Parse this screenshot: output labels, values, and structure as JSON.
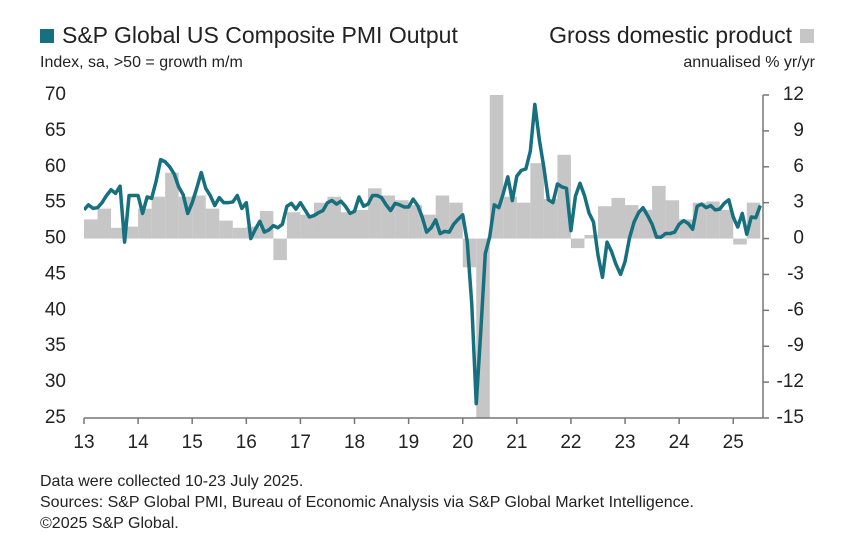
{
  "chart_data": {
    "type": "combo",
    "y_label": "Index, sa, >50 = growth m/m",
    "y2_label": "annualised % yr/yr",
    "notes": [
      "Data were collected 10-23 July 2025.",
      "Sources: S&P Global PMI, Bureau of Economic Analysis via S&P Global Market Intelligence.",
      "©2025 S&P Global."
    ],
    "xlim": [
      2013,
      2025.55
    ],
    "xticks": [
      {
        "value": 2013,
        "label": "13"
      },
      {
        "value": 2014,
        "label": "14"
      },
      {
        "value": 2015,
        "label": "15"
      },
      {
        "value": 2016,
        "label": "16"
      },
      {
        "value": 2017,
        "label": "17"
      },
      {
        "value": 2018,
        "label": "18"
      },
      {
        "value": 2019,
        "label": "19"
      },
      {
        "value": 2020,
        "label": "20"
      },
      {
        "value": 2021,
        "label": "21"
      },
      {
        "value": 2022,
        "label": "22"
      },
      {
        "value": 2023,
        "label": "23"
      },
      {
        "value": 2024,
        "label": "24"
      },
      {
        "value": 2025,
        "label": "25"
      }
    ],
    "ylim": [
      25,
      70
    ],
    "yticks": [
      25,
      30,
      35,
      40,
      45,
      50,
      55,
      60,
      65,
      70
    ],
    "y2lim": [
      -15,
      12
    ],
    "y2ticks": [
      -15,
      -12,
      -9,
      -6,
      -3,
      0,
      3,
      6,
      9,
      12
    ],
    "series": [
      {
        "name": "S&P Global US Composite PMI Output",
        "type": "line",
        "color": "#16707f",
        "x": [
          2013,
          2013.083,
          2013.167,
          2013.25,
          2013.333,
          2013.417,
          2013.5,
          2013.583,
          2013.667,
          2013.75,
          2013.833,
          2013.917,
          2014,
          2014.083,
          2014.167,
          2014.25,
          2014.333,
          2014.417,
          2014.5,
          2014.583,
          2014.667,
          2014.75,
          2014.833,
          2014.917,
          2015,
          2015.083,
          2015.167,
          2015.25,
          2015.333,
          2015.417,
          2015.5,
          2015.583,
          2015.667,
          2015.75,
          2015.833,
          2015.917,
          2016,
          2016.083,
          2016.167,
          2016.25,
          2016.333,
          2016.417,
          2016.5,
          2016.583,
          2016.667,
          2016.75,
          2016.833,
          2016.917,
          2017,
          2017.083,
          2017.167,
          2017.25,
          2017.333,
          2017.417,
          2017.5,
          2017.583,
          2017.667,
          2017.75,
          2017.833,
          2017.917,
          2018,
          2018.083,
          2018.167,
          2018.25,
          2018.333,
          2018.417,
          2018.5,
          2018.583,
          2018.667,
          2018.75,
          2018.833,
          2018.917,
          2019,
          2019.083,
          2019.167,
          2019.25,
          2019.333,
          2019.417,
          2019.5,
          2019.583,
          2019.667,
          2019.75,
          2019.833,
          2019.917,
          2020,
          2020.083,
          2020.167,
          2020.25,
          2020.333,
          2020.417,
          2020.5,
          2020.583,
          2020.667,
          2020.75,
          2020.833,
          2020.917,
          2021,
          2021.083,
          2021.167,
          2021.25,
          2021.333,
          2021.417,
          2021.5,
          2021.583,
          2021.667,
          2021.75,
          2021.833,
          2021.917,
          2022,
          2022.083,
          2022.167,
          2022.25,
          2022.333,
          2022.417,
          2022.5,
          2022.583,
          2022.667,
          2022.75,
          2022.833,
          2022.917,
          2023,
          2023.083,
          2023.167,
          2023.25,
          2023.333,
          2023.417,
          2023.5,
          2023.583,
          2023.667,
          2023.75,
          2023.833,
          2023.917,
          2024,
          2024.083,
          2024.167,
          2024.25,
          2024.333,
          2024.417,
          2024.5,
          2024.583,
          2024.667,
          2024.75,
          2024.833,
          2024.917,
          2025,
          2025.083,
          2025.167,
          2025.25,
          2025.333,
          2025.417,
          2025.5
        ],
        "values": [
          54,
          54.7,
          54.2,
          54.3,
          55,
          56,
          56.8,
          56.3,
          57.3,
          49.5,
          56,
          56,
          56,
          53.5,
          55.8,
          55.6,
          58,
          61,
          60.7,
          60,
          59,
          57.2,
          56.1,
          53.5,
          55,
          57,
          59.2,
          57,
          56,
          54.6,
          55.7,
          55,
          55,
          55.1,
          56,
          54.2,
          55,
          50,
          51.3,
          52.4,
          50.9,
          51.2,
          51.8,
          51.5,
          52,
          54.5,
          54.9,
          54.1,
          55,
          54,
          53,
          53.2,
          53.6,
          53.9,
          55,
          55.3,
          54.8,
          55.2,
          54.5,
          53.5,
          53.8,
          55.8,
          54.5,
          54.8,
          56,
          56,
          55.7,
          54.7,
          53.9,
          54.9,
          54.7,
          54.4,
          54.4,
          55.5,
          54.6,
          53,
          50.9,
          51.5,
          52.6,
          50.7,
          51,
          50.9,
          52,
          52.7,
          53.3,
          49.6,
          40.9,
          27,
          37,
          47.9,
          50.3,
          54.7,
          54.3,
          56.3,
          58.6,
          55.3,
          58.7,
          59.5,
          59.7,
          62.2,
          68.7,
          63.7,
          59.9,
          55.4,
          55,
          57.6,
          57.2,
          57,
          51.1,
          55.9,
          57.7,
          56,
          53.6,
          52.3,
          47.7,
          44.6,
          49.5,
          48.2,
          46.4,
          45,
          46.8,
          50.1,
          52.3,
          53.6,
          54.3,
          53.2,
          52,
          50.2,
          50.2,
          50.7,
          50.7,
          50.9,
          52,
          52.5,
          52.1,
          51.3,
          54.5,
          54.8,
          54.3,
          54.6,
          54,
          54.1,
          54.9,
          55.4,
          53,
          51.6,
          53.5,
          50.6,
          53,
          52.9,
          54.6
        ]
      },
      {
        "name": "Gross domestic product",
        "type": "bar",
        "axis": "y2",
        "color": "#c6c6c6",
        "x": [
          2013,
          2013.25,
          2013.5,
          2013.75,
          2014,
          2014.25,
          2014.5,
          2014.75,
          2015,
          2015.25,
          2015.5,
          2015.75,
          2016,
          2016.25,
          2016.5,
          2016.75,
          2017,
          2017.25,
          2017.5,
          2017.75,
          2018,
          2018.25,
          2018.5,
          2018.75,
          2019,
          2019.25,
          2019.5,
          2019.75,
          2020,
          2020.25,
          2020.5,
          2020.75,
          2021,
          2021.25,
          2021.5,
          2021.75,
          2022,
          2022.25,
          2022.5,
          2022.75,
          2023,
          2023.25,
          2023.5,
          2023.75,
          2024,
          2024.25,
          2024.5,
          2024.75,
          2025,
          2025.25
        ],
        "values": [
          1.6,
          2.5,
          0.9,
          1.0,
          2.5,
          3.5,
          5.5,
          3.5,
          3.6,
          2.5,
          1.5,
          0.9,
          1.0,
          2.3,
          -1.8,
          2.2,
          2.0,
          3.0,
          3.5,
          2.2,
          2.4,
          4.2,
          3.6,
          3.2,
          2.8,
          2.0,
          3.6,
          3.0,
          -2.4,
          -15,
          12,
          3.5,
          3.0,
          6.3,
          3.3,
          7.0,
          -0.8,
          0.3,
          2.7,
          3.4,
          2.8,
          2.4,
          4.4,
          3.2,
          1.6,
          3.0,
          3.1,
          2.4,
          -0.5,
          3.0
        ]
      }
    ]
  }
}
